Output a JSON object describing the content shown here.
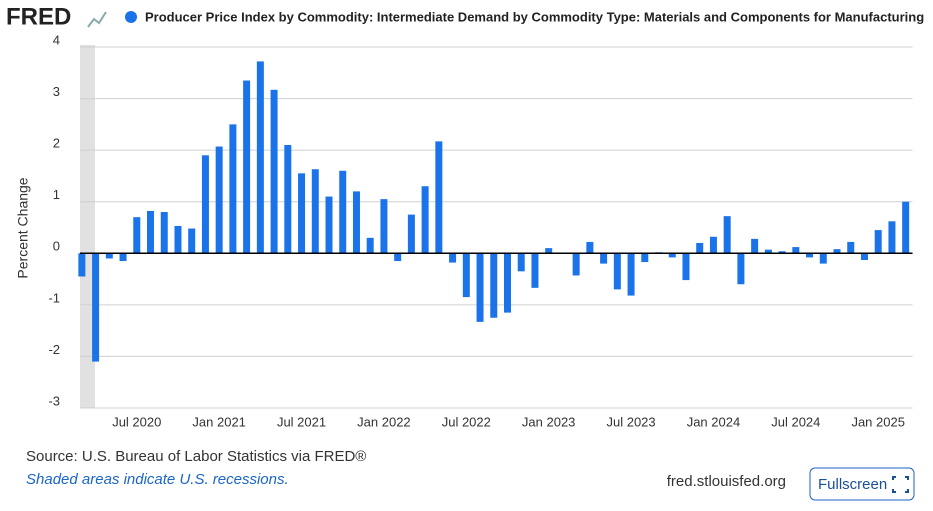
{
  "brand": "FRED",
  "chart_data": {
    "type": "bar",
    "y_label": "Percent Change",
    "categories": [
      null,
      null,
      null,
      null,
      "Jul 2020",
      null,
      null,
      null,
      null,
      null,
      "Jan 2021",
      null,
      null,
      null,
      null,
      null,
      "Jul 2021",
      null,
      null,
      null,
      null,
      null,
      "Jan 2022",
      null,
      null,
      null,
      null,
      null,
      "Jul 2022",
      null,
      null,
      null,
      null,
      null,
      "Jan 2023",
      null,
      null,
      null,
      null,
      null,
      "Jul 2023",
      null,
      null,
      null,
      null,
      null,
      "Jan 2024",
      null,
      null,
      null,
      null,
      null,
      "Jul 2024",
      null,
      null,
      null,
      null,
      null,
      "Jan 2025",
      null,
      null
    ],
    "series": [
      {
        "name": "Producer Price Index by Commodity: Intermediate Demand by Commodity Type: Materials and Components for Manufacturing",
        "color": "#1a73e8",
        "values": [
          -0.45,
          -2.1,
          -0.1,
          -0.15,
          0.7,
          0.82,
          0.8,
          0.53,
          0.48,
          1.9,
          2.07,
          2.5,
          3.35,
          3.72,
          3.17,
          2.1,
          1.55,
          1.63,
          1.1,
          1.6,
          1.2,
          0.3,
          1.05,
          -0.15,
          0.75,
          1.3,
          2.17,
          -0.18,
          -0.85,
          -1.33,
          -1.25,
          -1.15,
          -0.35,
          -0.67,
          0.1,
          0.0,
          -0.43,
          0.22,
          -0.2,
          -0.7,
          -0.82,
          -0.17,
          0.02,
          -0.08,
          -0.52,
          0.2,
          0.32,
          0.72,
          -0.6,
          0.28,
          0.07,
          0.04,
          0.12,
          -0.08,
          -0.2,
          0.08,
          0.22,
          -0.13,
          0.45,
          0.62,
          1.0
        ]
      }
    ],
    "ylim": [
      -3,
      4
    ],
    "yticks": [
      -3,
      -2,
      -1,
      0,
      1,
      2,
      3,
      4
    ],
    "grid": true
  },
  "footer": {
    "source": "Source: U.S. Bureau of Labor Statistics via FRED®",
    "note": "Shaded areas indicate U.S. recessions.",
    "site": "fred.stlouisfed.org",
    "button": "Fullscreen"
  }
}
